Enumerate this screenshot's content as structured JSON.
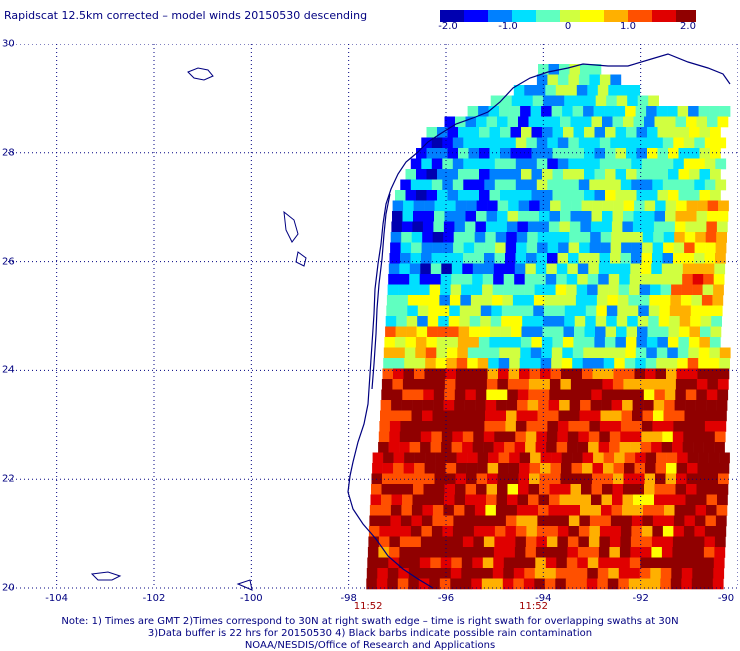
{
  "title": "Rapidscat 12.5km corrected – model winds 20150530 descending",
  "colorbar": {
    "labels": [
      "-2.0",
      "-1.0",
      "0",
      "1.0",
      "2.0"
    ],
    "values": [
      -2.0,
      -1.0,
      0,
      1.0,
      2.0
    ],
    "min": -2.0,
    "max": 2.0,
    "colors": [
      "#0000b0",
      "#0000ff",
      "#0080ff",
      "#00e0ff",
      "#60ffc0",
      "#d0ff40",
      "#ffff00",
      "#ffb000",
      "#ff5000",
      "#e00000",
      "#900000"
    ]
  },
  "axes": {
    "lon_ticks": [
      "-104",
      "-102",
      "-100",
      "-98",
      "-96",
      "-94",
      "-92",
      "-90"
    ],
    "lat_ticks": [
      "20",
      "22",
      "24",
      "26",
      "28",
      "30"
    ],
    "lon_range": [
      -105,
      -90
    ],
    "lat_range": [
      20,
      30
    ],
    "grid": "dotted"
  },
  "swath_times": [
    {
      "label": "11:52",
      "lon": -97.6
    },
    {
      "label": "11:52",
      "lon": -94.2
    }
  ],
  "notes": [
    "Note: 1) Times are GMT 2)Times correspond to 30N at right swath edge – time is right swath for overlapping swaths at 30N",
    "3)Data buffer is 22 hrs for 20150530 4) Black barbs indicate possible rain contamination",
    "NOAA/NESDIS/Office of Research and Applications"
  ]
}
